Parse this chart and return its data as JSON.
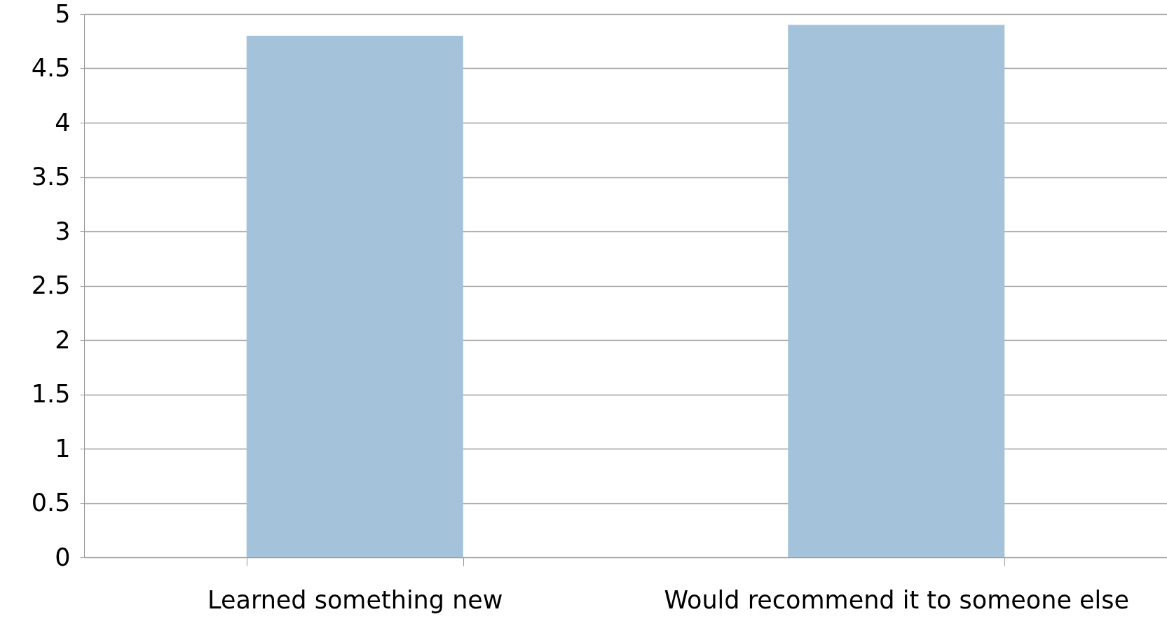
{
  "chart_data": {
    "type": "bar",
    "categories": [
      "Learned something new",
      "Would recommend it to someone else"
    ],
    "values": [
      4.8,
      4.9
    ],
    "color": "#a5c2db",
    "ylim": [
      0,
      5
    ],
    "yticks": [
      0,
      0.5,
      1,
      1.5,
      2,
      2.5,
      3,
      3.5,
      4,
      4.5,
      5
    ],
    "grid": "y"
  }
}
